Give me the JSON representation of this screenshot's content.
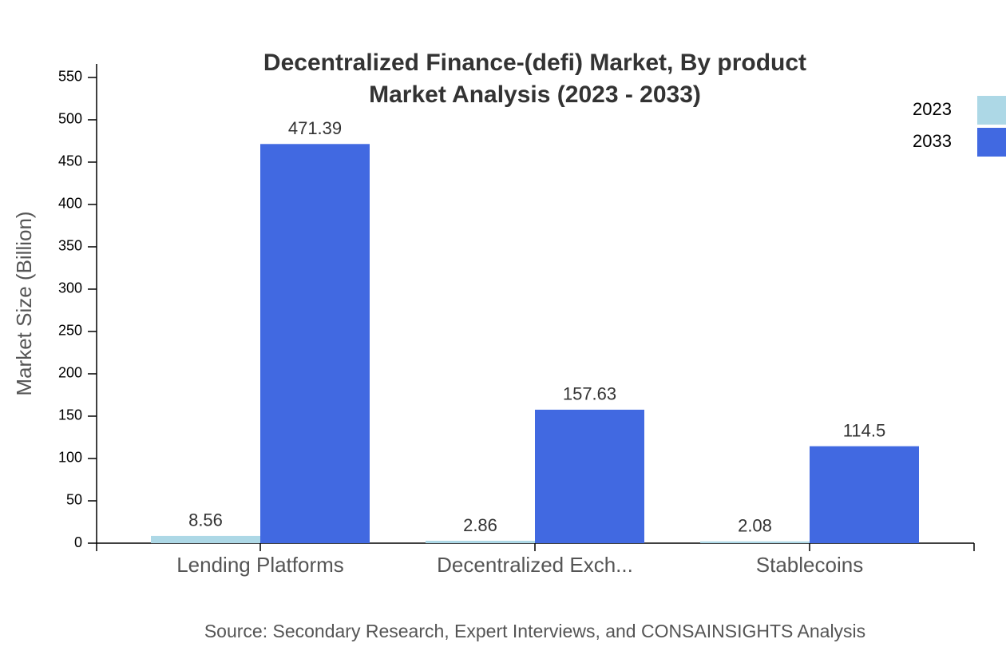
{
  "chart_data": {
    "type": "bar",
    "title": [
      "Decentralized Finance-(defi) Market, By product",
      "Market Analysis (2023 - 2033)"
    ],
    "y_label": "Market Size (Billion)",
    "source": "Source: Secondary Research, Expert Interviews, and CONSAINSIGHTS Analysis",
    "categories": [
      "Lending Platforms",
      "Decentralized Exch...",
      "Stablecoins"
    ],
    "series": [
      {
        "name": "2023",
        "color": "#add8e6",
        "values": [
          8.56,
          2.86,
          2.08
        ]
      },
      {
        "name": "2033",
        "color": "#4169e1",
        "values": [
          471.39,
          157.63,
          114.5
        ]
      }
    ],
    "ylim": [
      0,
      566
    ],
    "yticks": [
      0,
      50,
      100,
      150,
      200,
      250,
      300,
      350,
      400,
      450,
      500,
      550
    ],
    "legend": "top-right"
  }
}
